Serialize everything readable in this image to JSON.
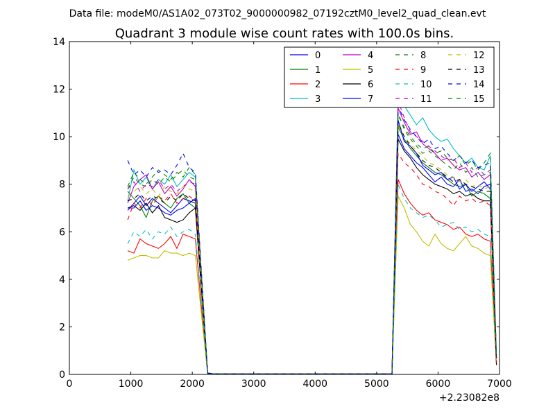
{
  "suptitle": "Data file: modeM0/AS1A02_073T02_9000000982_07192cztM0_level2_quad_clean.evt",
  "chart_data": {
    "type": "line",
    "title": "Quadrant 3 module wise count rates with 100.0s bins.",
    "xlabel": "",
    "ylabel": "",
    "x_offset_label": "+2.23082e8",
    "xlim": [
      0,
      7000
    ],
    "ylim": [
      0,
      14
    ],
    "x_ticks": [
      "0",
      "1000",
      "2000",
      "3000",
      "4000",
      "5000",
      "6000",
      "7000"
    ],
    "y_ticks": [
      "0",
      "2",
      "4",
      "6",
      "8",
      "10",
      "12",
      "14"
    ],
    "grid": false,
    "legend_position": "top-right",
    "legend_ncol": 4,
    "x": [
      950,
      1050,
      1150,
      1250,
      1350,
      1450,
      1550,
      1650,
      1750,
      1850,
      1950,
      2050,
      2150,
      2250,
      2350,
      2450,
      2550,
      2650,
      2750,
      2850,
      2950,
      3050,
      3150,
      3250,
      3350,
      3450,
      3550,
      3650,
      3750,
      3850,
      3950,
      4050,
      4150,
      4250,
      4350,
      4450,
      4550,
      4650,
      4750,
      4850,
      4950,
      5050,
      5150,
      5250,
      5350,
      5450,
      5550,
      5650,
      5750,
      5850,
      5950,
      6050,
      6150,
      6250,
      6350,
      6450,
      6550,
      6650,
      6750,
      6850,
      6950
    ],
    "series": [
      {
        "name": "0",
        "color": "#0000ff",
        "dash": "solid",
        "values": [
          6.9,
          7.2,
          7.5,
          7.1,
          7.4,
          7.2,
          7.0,
          6.8,
          7.1,
          7.4,
          7.3,
          7.2,
          3.6,
          0.05,
          0.02,
          0.03,
          0.02,
          0.02,
          0.03,
          0.02,
          0.02,
          0.03,
          0.02,
          0.02,
          0.03,
          0.02,
          0.02,
          0.02,
          0.03,
          0.02,
          0.02,
          0.03,
          0.02,
          0.02,
          0.03,
          0.02,
          0.02,
          0.02,
          0.03,
          0.02,
          0.02,
          0.03,
          0.02,
          0.02,
          10.1,
          9.5,
          9.2,
          8.9,
          8.7,
          8.4,
          8.1,
          8.3,
          8.0,
          7.9,
          8.2,
          7.7,
          7.8,
          7.6,
          7.9,
          8.0,
          0.6
        ]
      },
      {
        "name": "1",
        "color": "#008000",
        "dash": "solid",
        "values": [
          7.7,
          7.4,
          7.1,
          6.6,
          7.3,
          7.5,
          7.2,
          7.0,
          7.4,
          7.6,
          7.2,
          7.0,
          3.5,
          0.05,
          0.02,
          0.02,
          0.03,
          0.02,
          0.02,
          0.03,
          0.02,
          0.02,
          0.02,
          0.03,
          0.02,
          0.02,
          0.02,
          0.03,
          0.02,
          0.02,
          0.02,
          0.03,
          0.02,
          0.02,
          0.02,
          0.03,
          0.02,
          0.02,
          0.02,
          0.03,
          0.02,
          0.02,
          0.02,
          0.02,
          10.4,
          9.9,
          9.5,
          9.2,
          8.9,
          8.7,
          8.5,
          8.4,
          8.2,
          8.0,
          7.9,
          8.0,
          7.5,
          7.7,
          7.6,
          7.4,
          0.5
        ]
      },
      {
        "name": "2",
        "color": "#ff0000",
        "dash": "solid",
        "values": [
          5.2,
          5.1,
          5.7,
          5.5,
          5.4,
          5.3,
          5.5,
          5.8,
          5.3,
          5.9,
          5.8,
          5.7,
          2.8,
          0.04,
          0.01,
          0.02,
          0.01,
          0.02,
          0.01,
          0.01,
          0.02,
          0.01,
          0.01,
          0.02,
          0.01,
          0.01,
          0.02,
          0.01,
          0.01,
          0.02,
          0.01,
          0.01,
          0.02,
          0.01,
          0.01,
          0.02,
          0.01,
          0.01,
          0.02,
          0.01,
          0.01,
          0.02,
          0.01,
          0.01,
          8.2,
          7.6,
          7.2,
          6.9,
          6.7,
          6.8,
          6.5,
          6.4,
          6.3,
          6.1,
          6.2,
          5.9,
          5.8,
          5.9,
          5.7,
          5.6,
          0.4
        ]
      },
      {
        "name": "3",
        "color": "#00bfbf",
        "dash": "solid",
        "values": [
          7.3,
          8.6,
          8.0,
          8.3,
          7.8,
          8.2,
          8.0,
          8.4,
          7.9,
          8.2,
          8.5,
          8.3,
          4.2,
          0.06,
          0.02,
          0.03,
          0.02,
          0.02,
          0.03,
          0.02,
          0.02,
          0.03,
          0.02,
          0.02,
          0.03,
          0.02,
          0.02,
          0.03,
          0.02,
          0.02,
          0.03,
          0.02,
          0.02,
          0.03,
          0.02,
          0.02,
          0.03,
          0.02,
          0.02,
          0.03,
          0.02,
          0.02,
          0.03,
          0.02,
          11.8,
          11.3,
          10.9,
          10.5,
          10.8,
          10.3,
          10.0,
          9.8,
          9.9,
          9.5,
          9.2,
          8.9,
          9.1,
          8.7,
          8.6,
          9.2,
          0.8
        ]
      },
      {
        "name": "4",
        "color": "#bf00bf",
        "dash": "solid",
        "values": [
          7.2,
          7.9,
          8.2,
          8.4,
          7.8,
          8.1,
          7.6,
          7.9,
          7.5,
          7.8,
          8.2,
          7.9,
          3.9,
          0.05,
          0.02,
          0.02,
          0.03,
          0.02,
          0.02,
          0.02,
          0.03,
          0.02,
          0.02,
          0.02,
          0.03,
          0.02,
          0.02,
          0.02,
          0.03,
          0.02,
          0.02,
          0.02,
          0.03,
          0.02,
          0.02,
          0.02,
          0.03,
          0.02,
          0.02,
          0.02,
          0.03,
          0.02,
          0.02,
          0.02,
          11.2,
          10.6,
          10.1,
          10.2,
          9.7,
          9.5,
          9.3,
          9.0,
          9.1,
          8.8,
          8.6,
          8.7,
          8.3,
          8.5,
          8.2,
          8.4,
          0.7
        ]
      },
      {
        "name": "5",
        "color": "#bfbf00",
        "dash": "solid",
        "values": [
          4.8,
          4.9,
          5.0,
          5.0,
          4.9,
          4.9,
          5.2,
          5.1,
          5.1,
          5.0,
          5.1,
          5.0,
          2.5,
          0.03,
          0.01,
          0.01,
          0.01,
          0.01,
          0.01,
          0.01,
          0.01,
          0.01,
          0.01,
          0.01,
          0.01,
          0.01,
          0.01,
          0.01,
          0.01,
          0.01,
          0.01,
          0.01,
          0.01,
          0.01,
          0.01,
          0.01,
          0.01,
          0.01,
          0.01,
          0.01,
          0.01,
          0.01,
          0.01,
          0.01,
          7.5,
          7.0,
          6.3,
          6.0,
          5.6,
          5.4,
          5.9,
          5.5,
          5.3,
          5.2,
          5.5,
          5.8,
          5.4,
          5.3,
          5.1,
          5.0,
          0.4
        ]
      },
      {
        "name": "6",
        "color": "#000000",
        "dash": "solid",
        "values": [
          7.0,
          7.1,
          6.9,
          7.2,
          6.8,
          7.1,
          6.6,
          6.5,
          6.4,
          6.5,
          6.8,
          7.0,
          3.5,
          0.05,
          0.02,
          0.02,
          0.02,
          0.02,
          0.02,
          0.02,
          0.02,
          0.02,
          0.02,
          0.02,
          0.02,
          0.02,
          0.02,
          0.02,
          0.02,
          0.02,
          0.02,
          0.02,
          0.02,
          0.02,
          0.02,
          0.02,
          0.02,
          0.02,
          0.02,
          0.02,
          0.02,
          0.02,
          0.02,
          0.02,
          9.9,
          9.4,
          9.1,
          8.7,
          8.4,
          8.2,
          8.0,
          7.9,
          7.8,
          7.6,
          7.7,
          7.5,
          7.6,
          7.4,
          7.3,
          7.3,
          0.4
        ]
      },
      {
        "name": "7",
        "color": "#0000ff",
        "dash": "solid",
        "values": [
          7.0,
          7.0,
          7.3,
          6.9,
          7.1,
          7.0,
          6.8,
          6.7,
          6.9,
          7.0,
          7.2,
          7.4,
          3.7,
          0.05,
          0.02,
          0.02,
          0.02,
          0.02,
          0.02,
          0.02,
          0.02,
          0.02,
          0.02,
          0.02,
          0.02,
          0.02,
          0.02,
          0.02,
          0.02,
          0.02,
          0.02,
          0.02,
          0.02,
          0.02,
          0.02,
          0.02,
          0.02,
          0.02,
          0.02,
          0.02,
          0.02,
          0.02,
          0.02,
          0.02,
          10.7,
          9.8,
          9.6,
          9.3,
          8.8,
          8.6,
          8.4,
          8.5,
          8.2,
          8.3,
          7.8,
          8.0,
          7.7,
          7.9,
          8.1,
          7.8,
          0.5
        ]
      },
      {
        "name": "8",
        "color": "#008000",
        "dash": "dashed",
        "values": [
          7.8,
          8.3,
          8.0,
          7.9,
          8.2,
          8.0,
          8.3,
          8.1,
          8.4,
          8.6,
          8.3,
          8.2,
          4.1,
          0.05,
          0.02,
          0.02,
          0.02,
          0.02,
          0.02,
          0.02,
          0.02,
          0.02,
          0.02,
          0.02,
          0.02,
          0.02,
          0.02,
          0.02,
          0.02,
          0.02,
          0.02,
          0.02,
          0.02,
          0.02,
          0.02,
          0.02,
          0.02,
          0.02,
          0.02,
          0.02,
          0.02,
          0.02,
          0.02,
          0.02,
          11.0,
          10.3,
          9.9,
          9.6,
          9.3,
          9.4,
          9.2,
          9.0,
          8.8,
          8.6,
          8.9,
          8.5,
          8.7,
          8.3,
          8.4,
          8.5,
          0.6
        ]
      },
      {
        "name": "9",
        "color": "#ff0000",
        "dash": "dashed",
        "values": [
          6.5,
          7.2,
          7.0,
          7.4,
          7.1,
          7.5,
          7.3,
          7.6,
          7.2,
          7.4,
          7.5,
          7.3,
          3.6,
          0.05,
          0.02,
          0.02,
          0.02,
          0.02,
          0.02,
          0.02,
          0.02,
          0.02,
          0.02,
          0.02,
          0.02,
          0.02,
          0.02,
          0.02,
          0.02,
          0.02,
          0.02,
          0.02,
          0.02,
          0.02,
          0.02,
          0.02,
          0.02,
          0.02,
          0.02,
          0.02,
          0.02,
          0.02,
          0.02,
          0.02,
          9.3,
          8.9,
          8.7,
          8.4,
          8.0,
          7.9,
          7.7,
          7.6,
          7.4,
          7.1,
          7.5,
          7.3,
          7.4,
          7.2,
          7.3,
          7.1,
          0.5
        ]
      },
      {
        "name": "10",
        "color": "#00bfbf",
        "dash": "dashed",
        "values": [
          5.5,
          6.0,
          5.8,
          6.1,
          5.7,
          6.0,
          5.9,
          6.2,
          5.8,
          6.0,
          6.1,
          5.9,
          3.0,
          0.04,
          0.01,
          0.01,
          0.01,
          0.01,
          0.01,
          0.01,
          0.01,
          0.01,
          0.01,
          0.01,
          0.01,
          0.01,
          0.01,
          0.01,
          0.01,
          0.01,
          0.01,
          0.01,
          0.01,
          0.01,
          0.01,
          0.01,
          0.01,
          0.01,
          0.01,
          0.01,
          0.01,
          0.01,
          0.01,
          0.01,
          8.0,
          7.4,
          7.0,
          6.8,
          6.6,
          6.7,
          6.5,
          6.2,
          6.3,
          6.4,
          6.1,
          6.2,
          6.0,
          6.1,
          5.9,
          5.8,
          0.5
        ]
      },
      {
        "name": "11",
        "color": "#bf00bf",
        "dash": "dashed",
        "values": [
          7.8,
          8.1,
          7.7,
          8.0,
          7.9,
          8.2,
          7.8,
          8.0,
          7.7,
          7.9,
          8.1,
          8.0,
          4.0,
          0.05,
          0.02,
          0.02,
          0.02,
          0.02,
          0.02,
          0.02,
          0.02,
          0.02,
          0.02,
          0.02,
          0.02,
          0.02,
          0.02,
          0.02,
          0.02,
          0.02,
          0.02,
          0.02,
          0.02,
          0.02,
          0.02,
          0.02,
          0.02,
          0.02,
          0.02,
          0.02,
          0.02,
          0.02,
          0.02,
          0.02,
          11.5,
          10.8,
          10.2,
          10.0,
          9.8,
          9.6,
          9.4,
          9.2,
          9.0,
          9.1,
          8.7,
          8.9,
          8.5,
          8.7,
          8.4,
          8.6,
          0.7
        ]
      },
      {
        "name": "12",
        "color": "#bfbf00",
        "dash": "dashed",
        "values": [
          7.5,
          7.7,
          7.9,
          7.6,
          7.8,
          7.5,
          7.9,
          7.7,
          7.6,
          7.9,
          7.8,
          7.7,
          3.8,
          0.05,
          0.02,
          0.02,
          0.02,
          0.02,
          0.02,
          0.02,
          0.02,
          0.02,
          0.02,
          0.02,
          0.02,
          0.02,
          0.02,
          0.02,
          0.02,
          0.02,
          0.02,
          0.02,
          0.02,
          0.02,
          0.02,
          0.02,
          0.02,
          0.02,
          0.02,
          0.02,
          0.02,
          0.02,
          0.02,
          0.02,
          10.5,
          10.0,
          9.7,
          9.4,
          9.2,
          8.9,
          8.8,
          8.6,
          8.4,
          8.3,
          8.1,
          8.2,
          7.9,
          8.0,
          7.8,
          7.9,
          0.6
        ]
      },
      {
        "name": "13",
        "color": "#000000",
        "dash": "dashed",
        "values": [
          7.3,
          7.4,
          7.6,
          7.3,
          7.5,
          7.4,
          7.2,
          7.5,
          7.3,
          7.6,
          7.4,
          7.3,
          3.7,
          0.05,
          0.02,
          0.02,
          0.02,
          0.02,
          0.02,
          0.02,
          0.02,
          0.02,
          0.02,
          0.02,
          0.02,
          0.02,
          0.02,
          0.02,
          0.02,
          0.02,
          0.02,
          0.02,
          0.02,
          0.02,
          0.02,
          0.02,
          0.02,
          0.02,
          0.02,
          0.02,
          0.02,
          0.02,
          0.02,
          0.02,
          10.6,
          10.0,
          9.6,
          9.3,
          9.0,
          8.8,
          8.7,
          8.5,
          8.3,
          8.1,
          8.2,
          8.0,
          7.9,
          7.8,
          7.7,
          7.7,
          0.5
        ]
      },
      {
        "name": "14",
        "color": "#0000ff",
        "dash": "dashed",
        "values": [
          9.0,
          8.4,
          8.6,
          8.3,
          8.7,
          8.5,
          8.6,
          8.4,
          8.8,
          9.3,
          8.7,
          8.5,
          4.3,
          0.06,
          0.02,
          0.02,
          0.02,
          0.02,
          0.02,
          0.02,
          0.02,
          0.02,
          0.02,
          0.02,
          0.02,
          0.02,
          0.02,
          0.02,
          0.02,
          0.02,
          0.02,
          0.02,
          0.02,
          0.02,
          0.02,
          0.02,
          0.02,
          0.02,
          0.02,
          0.02,
          0.02,
          0.02,
          0.02,
          0.02,
          11.3,
          10.7,
          10.3,
          10.0,
          9.7,
          9.9,
          9.5,
          9.6,
          9.3,
          9.0,
          9.2,
          8.9,
          9.0,
          8.7,
          8.8,
          8.9,
          0.7
        ]
      },
      {
        "name": "15",
        "color": "#008000",
        "dash": "dashed",
        "values": [
          7.9,
          8.5,
          8.2,
          8.0,
          8.3,
          8.6,
          8.4,
          8.2,
          8.5,
          8.3,
          8.7,
          8.4,
          4.2,
          0.06,
          0.02,
          0.02,
          0.02,
          0.02,
          0.02,
          0.02,
          0.02,
          0.02,
          0.02,
          0.02,
          0.02,
          0.02,
          0.02,
          0.02,
          0.02,
          0.02,
          0.02,
          0.02,
          0.02,
          0.02,
          0.02,
          0.02,
          0.02,
          0.02,
          0.02,
          0.02,
          0.02,
          0.02,
          0.02,
          0.02,
          10.9,
          10.4,
          10.0,
          9.7,
          9.5,
          9.6,
          9.3,
          9.4,
          9.1,
          9.0,
          9.2,
          8.8,
          9.0,
          8.6,
          8.9,
          9.3,
          0.8
        ]
      }
    ]
  }
}
